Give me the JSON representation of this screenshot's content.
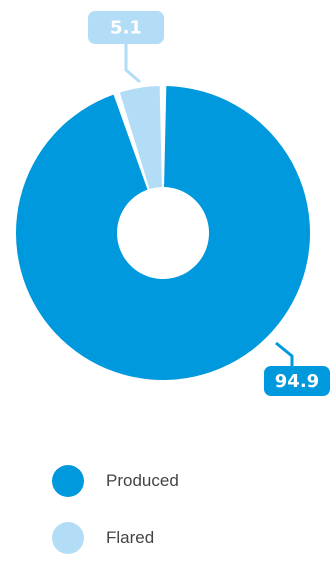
{
  "chart_data": {
    "type": "pie",
    "variant": "donut",
    "categories": [
      "Produced",
      "Flared"
    ],
    "values": [
      94.9,
      5.1
    ],
    "data_labels": [
      "94.9",
      "5.1"
    ],
    "colors": [
      "#0099dd",
      "#b3ddf7"
    ],
    "label_text_color": "#ffffff",
    "legend_position": "bottom",
    "title": ""
  }
}
